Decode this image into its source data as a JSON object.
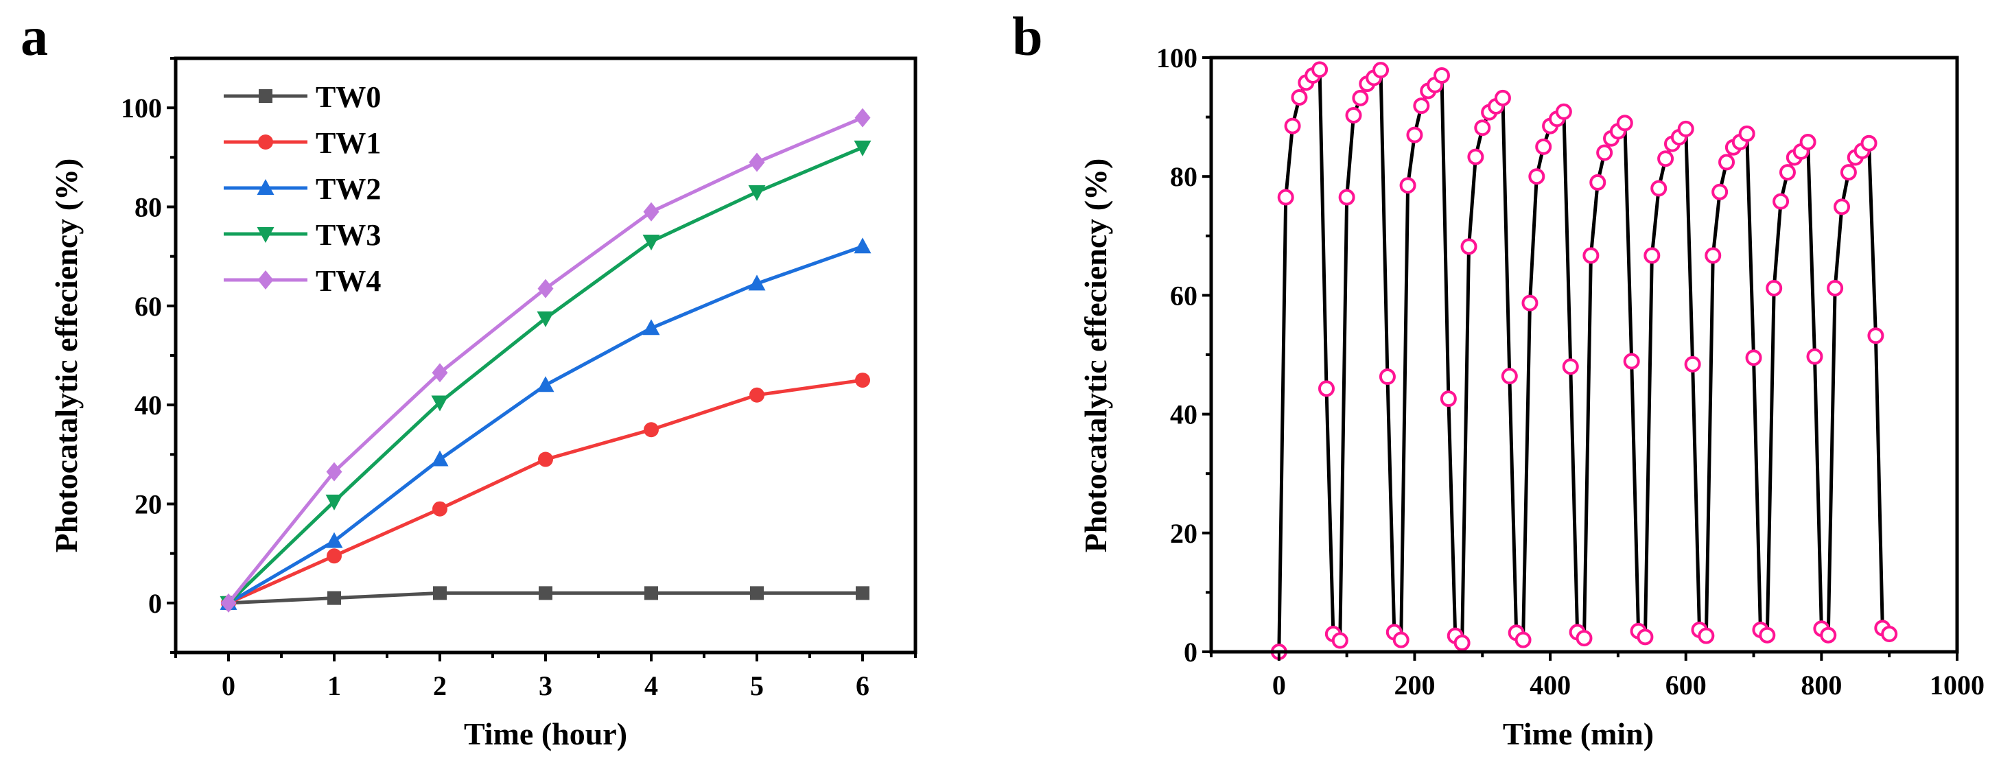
{
  "chart_data": [
    {
      "panel": "a",
      "type": "line",
      "title": "",
      "xlabel": "Time (hour)",
      "ylabel": "Photocatalytic effeciency (%)",
      "xlim": [
        -0.5,
        6.5
      ],
      "ylim": [
        -10,
        110
      ],
      "xticks": [
        0,
        1,
        2,
        3,
        4,
        5,
        6
      ],
      "yticks": [
        0,
        20,
        40,
        60,
        80,
        100
      ],
      "legend_position": "top-left",
      "x": [
        0,
        1,
        2,
        3,
        4,
        5,
        6
      ],
      "series": [
        {
          "name": "TW0",
          "color": "#4f4f4f",
          "marker": "square",
          "values": [
            0,
            1,
            2,
            2,
            2,
            2,
            2
          ]
        },
        {
          "name": "TW1",
          "color": "#f23a3a",
          "marker": "circle",
          "values": [
            0,
            9.5,
            19,
            29,
            35,
            42,
            45
          ]
        },
        {
          "name": "TW2",
          "color": "#1c6fdc",
          "marker": "triangle-up",
          "values": [
            0,
            12.5,
            29,
            44,
            55.5,
            64.5,
            72
          ]
        },
        {
          "name": "TW3",
          "color": "#12a05a",
          "marker": "triangle-down",
          "values": [
            0,
            20.5,
            40.5,
            57.5,
            73,
            83,
            92
          ]
        },
        {
          "name": "TW4",
          "color": "#c27ade",
          "marker": "diamond",
          "values": [
            0,
            26.5,
            46.5,
            63.5,
            79,
            89,
            98
          ]
        }
      ]
    },
    {
      "panel": "b",
      "type": "line",
      "title": "",
      "xlabel": "Time (min)",
      "ylabel": "Photocatalytic effeciency (%)",
      "xlim": [
        -100,
        1000
      ],
      "ylim": [
        0,
        100
      ],
      "xticks": [
        0,
        200,
        400,
        600,
        800,
        1000
      ],
      "yticks": [
        0,
        20,
        40,
        60,
        80,
        100
      ],
      "line_color": "#000000",
      "marker_color": "#ff1493",
      "marker": "open-circle",
      "x": [
        0,
        10,
        20,
        30,
        40,
        50,
        60,
        70,
        80,
        90,
        100,
        110,
        120,
        130,
        140,
        150,
        160,
        170,
        180,
        190,
        200,
        210,
        220,
        230,
        240,
        250,
        260,
        270,
        280,
        290,
        300,
        310,
        320,
        330,
        340,
        350,
        360,
        370,
        380,
        390,
        400,
        410,
        420,
        430,
        440,
        450,
        460,
        470,
        480,
        490,
        500,
        510,
        520,
        530,
        540,
        550,
        560,
        570,
        580,
        590,
        600,
        610,
        620,
        630,
        640,
        650,
        660,
        670,
        680,
        690,
        700,
        710,
        720,
        730,
        740,
        750,
        760,
        770,
        780,
        790,
        800,
        810,
        820,
        830,
        840,
        850,
        860,
        870,
        880,
        890,
        900
      ],
      "values": [
        0,
        76.5,
        88.5,
        93.3,
        95.8,
        97,
        98,
        44.3,
        3,
        1.9,
        76.5,
        90.3,
        93.2,
        95.6,
        96.6,
        97.9,
        46.3,
        3.3,
        2,
        78.5,
        87,
        91.9,
        94.4,
        95.4,
        97,
        42.6,
        2.7,
        1.5,
        68.2,
        83.3,
        88.2,
        90.8,
        91.8,
        93.2,
        46.4,
        3.2,
        2,
        58.7,
        80,
        85,
        88.5,
        89.7,
        90.9,
        48,
        3.3,
        2.3,
        66.7,
        79,
        84,
        86.4,
        87.6,
        89,
        48.9,
        3.5,
        2.5,
        66.7,
        78,
        83,
        85.5,
        86.6,
        88,
        48.4,
        3.7,
        2.7,
        66.7,
        77.4,
        82.4,
        84.9,
        85.8,
        87.2,
        49.5,
        3.7,
        2.8,
        61.2,
        75.8,
        80.7,
        83.2,
        84.2,
        85.8,
        49.7,
        3.9,
        2.8,
        61.2,
        74.9,
        80.7,
        83.2,
        84.3,
        85.6,
        53.2,
        4,
        3
      ]
    }
  ]
}
